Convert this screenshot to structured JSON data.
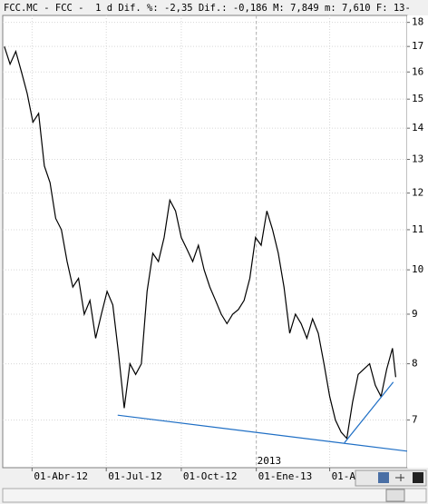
{
  "chart_data": {
    "type": "line",
    "title": "FCC.MC - FCC -  1 d Dif. %: -2,35 Dif.: -0,186 M: 7,849 m: 7,610 F: 13-",
    "annotation": "2013",
    "yscale": "log",
    "grid": true,
    "ylim": [
      6.25,
      18.3
    ],
    "yticks": [
      7,
      8,
      9,
      10,
      11,
      12,
      13,
      14,
      15,
      16,
      17,
      18
    ],
    "xlim": [
      "2012-02-25",
      "2013-07-05"
    ],
    "xticks": [
      {
        "value": "2012-04-01",
        "label": "01-Abr-12"
      },
      {
        "value": "2012-07-01",
        "label": "01-Jul-12"
      },
      {
        "value": "2012-10-01",
        "label": "01-Oct-12"
      },
      {
        "value": "2013-01-01",
        "label": "01-Ene-13"
      },
      {
        "value": "2013-04-01",
        "label": "01-A"
      }
    ],
    "x": [
      "2012-02-27",
      "2012-03-05",
      "2012-03-12",
      "2012-03-19",
      "2012-03-26",
      "2012-04-02",
      "2012-04-09",
      "2012-04-16",
      "2012-04-23",
      "2012-04-30",
      "2012-05-07",
      "2012-05-14",
      "2012-05-21",
      "2012-05-28",
      "2012-06-04",
      "2012-06-11",
      "2012-06-18",
      "2012-06-25",
      "2012-07-02",
      "2012-07-09",
      "2012-07-16",
      "2012-07-23",
      "2012-07-30",
      "2012-08-06",
      "2012-08-13",
      "2012-08-20",
      "2012-08-27",
      "2012-09-03",
      "2012-09-10",
      "2012-09-17",
      "2012-09-24",
      "2012-10-01",
      "2012-10-08",
      "2012-10-15",
      "2012-10-22",
      "2012-10-29",
      "2012-11-05",
      "2012-11-12",
      "2012-11-19",
      "2012-11-26",
      "2012-12-03",
      "2012-12-10",
      "2012-12-17",
      "2012-12-24",
      "2012-12-31",
      "2013-01-07",
      "2013-01-14",
      "2013-01-21",
      "2013-01-28",
      "2013-02-04",
      "2013-02-11",
      "2013-02-18",
      "2013-02-25",
      "2013-03-04",
      "2013-03-11",
      "2013-03-18",
      "2013-03-25",
      "2013-04-01",
      "2013-04-08",
      "2013-04-15",
      "2013-04-22",
      "2013-04-29",
      "2013-05-06",
      "2013-05-13",
      "2013-05-20",
      "2013-05-27",
      "2013-06-03",
      "2013-06-10",
      "2013-06-17",
      "2013-06-21"
    ],
    "series": [
      {
        "color": "#000000",
        "values": [
          17.0,
          16.3,
          16.8,
          16.0,
          15.2,
          14.2,
          14.5,
          12.8,
          12.3,
          11.3,
          11.0,
          10.2,
          9.6,
          9.8,
          9.0,
          9.3,
          8.5,
          9.0,
          9.5,
          9.2,
          8.2,
          7.2,
          8.0,
          7.8,
          8.0,
          9.5,
          10.4,
          10.2,
          10.8,
          11.8,
          11.5,
          10.8,
          10.5,
          10.2,
          10.6,
          10.0,
          9.6,
          9.3,
          9.0,
          8.8,
          9.0,
          9.1,
          9.3,
          9.8,
          10.8,
          10.6,
          11.5,
          11.0,
          10.4,
          9.6,
          8.6,
          9.0,
          8.8,
          8.5,
          8.9,
          8.6,
          8.0,
          7.4,
          7.0,
          6.8,
          6.7,
          7.3,
          7.8,
          7.9,
          8.0,
          7.6,
          7.4,
          7.9,
          8.3,
          7.75
        ]
      }
    ],
    "trendlines": [
      {
        "color": "#1f6fc5",
        "x": [
          "2012-07-15",
          "2013-07-05"
        ],
        "values": [
          7.08,
          6.5
        ]
      },
      {
        "color": "#1f6fc5",
        "x": [
          "2013-04-19",
          "2013-06-18"
        ],
        "values": [
          6.63,
          7.66
        ]
      }
    ]
  }
}
